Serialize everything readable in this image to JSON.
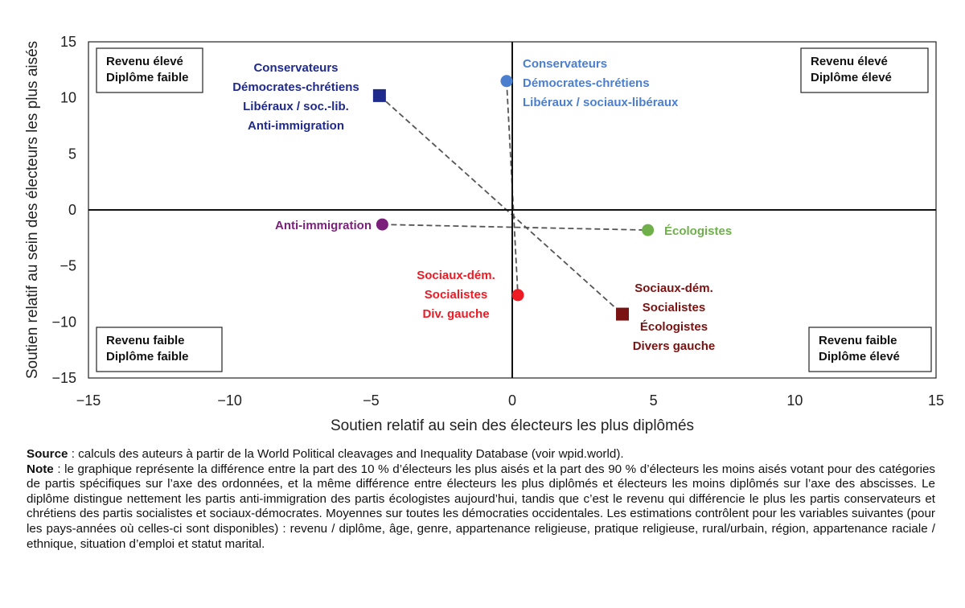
{
  "chart_data": {
    "type": "scatter",
    "xlabel": "Soutien relatif au sein des électeurs les plus diplômés",
    "ylabel": "Soutien relatif au sein des électeurs les plus aisés",
    "xlim": [
      -15,
      15
    ],
    "ylim": [
      -15,
      15
    ],
    "xticks": [
      -15,
      -10,
      -5,
      0,
      5,
      10,
      15
    ],
    "yticks": [
      15,
      10,
      5,
      0,
      -5,
      -10,
      -15
    ],
    "points": [
      {
        "id": "droite-square",
        "x": -4.7,
        "y": 10.2,
        "shape": "square",
        "color": "#1f2a8c",
        "label": [
          "Conservateurs",
          "Démocrates-chrétiens",
          "Libéraux / soc.-lib.",
          "Anti-immigration"
        ]
      },
      {
        "id": "droite-circle",
        "x": -0.2,
        "y": 11.5,
        "shape": "circle",
        "color": "#4a7fd0",
        "label": [
          "Conservateurs",
          "Démocrates-chrétiens",
          "Libéraux / sociaux-libéraux"
        ]
      },
      {
        "id": "anti-immigration",
        "x": -4.6,
        "y": -1.3,
        "shape": "circle",
        "color": "#7a1f7a",
        "label": [
          "Anti-immigration"
        ]
      },
      {
        "id": "ecologistes",
        "x": 4.8,
        "y": -1.8,
        "shape": "circle",
        "color": "#6fb04a",
        "label": [
          "Écologistes"
        ]
      },
      {
        "id": "gauche-circle",
        "x": 0.2,
        "y": -7.6,
        "shape": "circle",
        "color": "#ee1b24",
        "label": [
          "Sociaux-dém.",
          "Socialistes",
          "Div. gauche"
        ]
      },
      {
        "id": "gauche-square",
        "x": 3.9,
        "y": -9.3,
        "shape": "square",
        "color": "#7a1212",
        "label": [
          "Sociaux-dém.",
          "Socialistes",
          "Écologistes",
          "Divers gauche"
        ]
      }
    ],
    "connectors": [
      {
        "from": "droite-square",
        "to": "gauche-square"
      },
      {
        "from": "droite-circle",
        "to": "gauche-circle"
      },
      {
        "from": "anti-immigration",
        "to": "ecologistes"
      }
    ],
    "quadrant_labels": {
      "top_left": [
        "Revenu élevé",
        "Diplôme faible"
      ],
      "top_right": [
        "Revenu élevé",
        "Diplôme élevé"
      ],
      "bottom_left": [
        "Revenu faible",
        "Diplôme faible"
      ],
      "bottom_right": [
        "Revenu faible",
        "Diplôme élevé"
      ]
    },
    "grid": false,
    "legend": "none"
  },
  "notes": {
    "source_label": "Source",
    "source_text": " : calculs des auteurs à partir de la World Political cleavages and Inequality Database (voir wpid.world).",
    "note_label": "Note",
    "note_text": " : le graphique représente la différence entre la part des 10 % d’électeurs les plus aisés et la part des 90 % d’électeurs les moins aisés votant pour des catégories de partis spécifiques sur l’axe des ordonnées, et la même différence entre électeurs les plus diplômés et électeurs les moins diplômés sur l’axe des abscisses. Le diplôme distingue nettement les partis anti-immigration des partis écologistes aujourd’hui, tandis que c’est le revenu qui différencie le plus les partis conservateurs et chrétiens des partis socialistes et sociaux-démocrates. Moyennes sur toutes les démocraties occidentales. Les estimations contrôlent pour les variables suivantes (pour les pays-années où celles-ci sont disponibles) : revenu / diplôme, âge, genre, appartenance religieuse, pratique religieuse, rural/urbain, région, appartenance raciale / ethnique, situation d’emploi et statut marital."
  }
}
